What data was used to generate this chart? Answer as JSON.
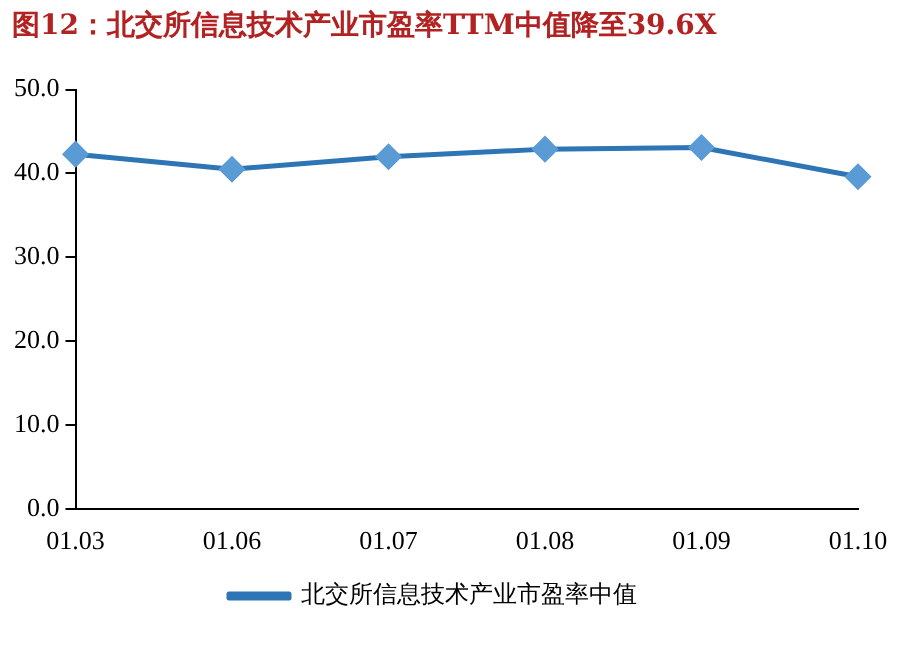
{
  "chart_data": {
    "type": "line",
    "title": "图12：北交所信息技术产业市盈率TTM中值降至39.6X",
    "categories": [
      "01.03",
      "01.06",
      "01.07",
      "01.08",
      "01.09",
      "01.10"
    ],
    "series": [
      {
        "name": "北交所信息技术产业市盈率中值",
        "color": "#2e75b6",
        "values": [
          42.3,
          40.5,
          42.0,
          42.9,
          43.1,
          39.6
        ]
      }
    ],
    "ylim": [
      0,
      50
    ],
    "yticks": [
      {
        "value": 0,
        "label": "0.0"
      },
      {
        "value": 10,
        "label": "10.0"
      },
      {
        "value": 20,
        "label": "20.0"
      },
      {
        "value": 30,
        "label": "30.0"
      },
      {
        "value": 40,
        "label": "40.0"
      },
      {
        "value": 50,
        "label": "50.0"
      }
    ],
    "grid": false,
    "legend": "bottom",
    "marker": "diamond",
    "line_style": "solid"
  }
}
